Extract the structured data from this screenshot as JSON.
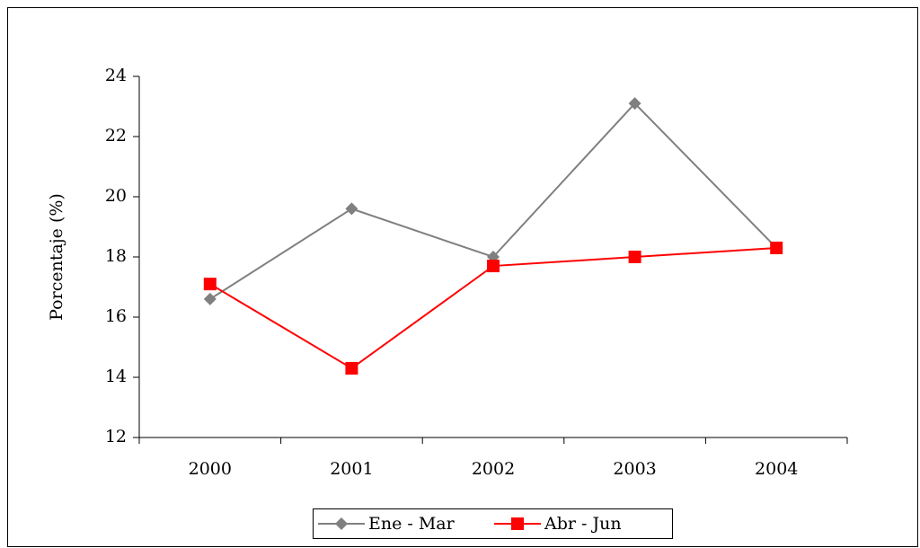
{
  "chart_data": {
    "type": "line",
    "y_label": "Porcentaje (%)",
    "categories": [
      "2000",
      "2001",
      "2002",
      "2003",
      "2004"
    ],
    "series": [
      {
        "name": "Ene - Mar",
        "color": "#808080",
        "marker": "diamond",
        "values": [
          16.6,
          19.6,
          18.0,
          23.1,
          18.3
        ]
      },
      {
        "name": "Abr - Jun",
        "color": "#ff0000",
        "marker": "square",
        "values": [
          17.1,
          14.3,
          17.7,
          18.0,
          18.3
        ]
      }
    ],
    "ylim": [
      12,
      24
    ],
    "yticks": [
      12,
      14,
      16,
      18,
      20,
      22,
      24
    ],
    "grid": false
  }
}
